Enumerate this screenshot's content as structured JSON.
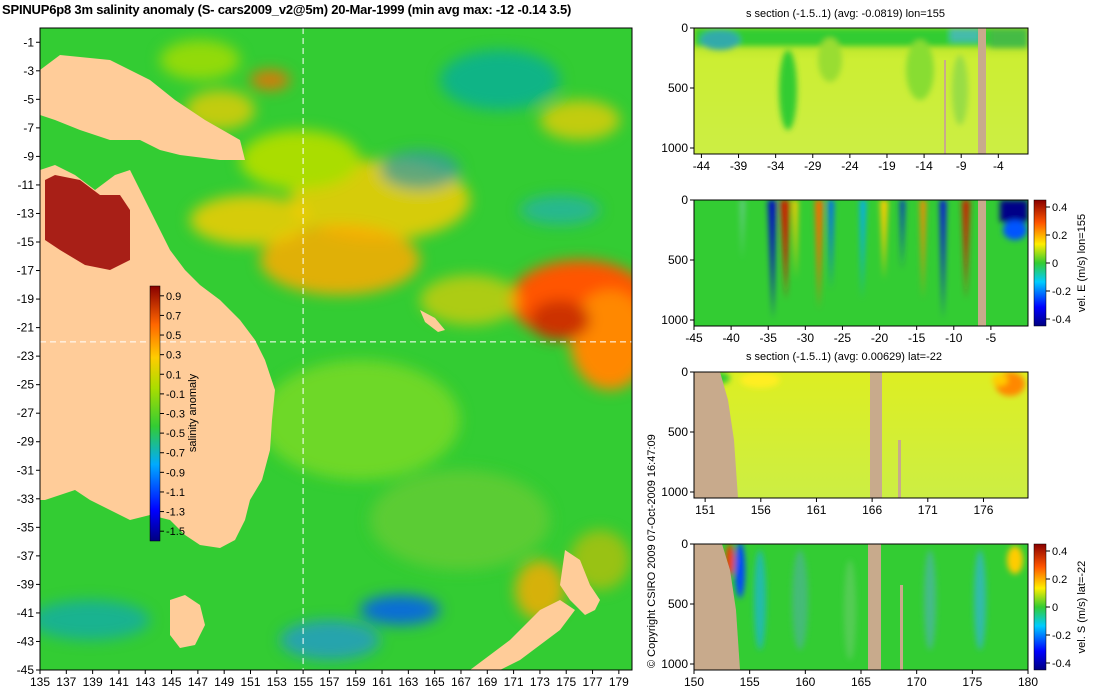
{
  "title": "SPINUP6p8 3m salinity anomaly (S- cars2009_v2@5m) 20-Mar-1999 (min avg max: -12 -0.14 3.5)",
  "copyright": "© Copyright CSIRO 2009   07-Oct-2009 16:47:09",
  "colors": {
    "land": "#ffcc99",
    "section_land": "#c8aa8c",
    "ocean_base": "#33cc33",
    "crosshair": "#ffffff"
  },
  "chart_data": [
    {
      "type": "heatmap",
      "name": "map",
      "title": "SPINUP6p8 3m salinity anomaly (S- cars2009_v2@5m) 20-Mar-1999 (min avg max: -12 -0.14 3.5)",
      "x_ticks": [
        "135",
        "137",
        "139",
        "141",
        "143",
        "145",
        "147",
        "149",
        "151",
        "153",
        "155",
        "157",
        "159",
        "161",
        "163",
        "165",
        "167",
        "169",
        "171",
        "173",
        "175",
        "177",
        "179"
      ],
      "y_ticks": [
        "-1",
        "-3",
        "-5",
        "-7",
        "-9",
        "-11",
        "-13",
        "-15",
        "-17",
        "-19",
        "-21",
        "-23",
        "-25",
        "-27",
        "-29",
        "-31",
        "-33",
        "-35",
        "-37",
        "-39",
        "-41",
        "-43",
        "-45"
      ],
      "xlim": [
        135,
        180
      ],
      "ylim": [
        -45,
        0
      ],
      "crosshair": {
        "lon": 155,
        "lat": -22
      },
      "colorbar": {
        "label": "salinity anomaly",
        "ticks": [
          "0.9",
          "0.7",
          "0.5",
          "0.3",
          "0.1",
          "-0.1",
          "-0.3",
          "-0.5",
          "-0.7",
          "-0.9",
          "-1.1",
          "-1.3",
          "-1.5"
        ],
        "range": [
          -1.6,
          1.0
        ]
      }
    },
    {
      "type": "heatmap",
      "name": "s-section-lon155",
      "title": "s section (-1.5..1) (avg: -0.0819) lon=155",
      "x_ticks": [
        "-44",
        "-39",
        "-34",
        "-29",
        "-24",
        "-19",
        "-14",
        "-9",
        "-4"
      ],
      "y_ticks": [
        "0",
        "500",
        "1000"
      ],
      "xlim": [
        -45,
        0
      ],
      "ylim": [
        1050,
        0
      ]
    },
    {
      "type": "heatmap",
      "name": "vel-e-lon155",
      "title": "",
      "x_ticks": [
        "-45",
        "-40",
        "-35",
        "-30",
        "-25",
        "-20",
        "-15",
        "-10",
        "-5"
      ],
      "y_ticks": [
        "0",
        "500",
        "1000"
      ],
      "xlim": [
        -45,
        0
      ],
      "ylim": [
        1050,
        0
      ],
      "colorbar": {
        "label": "vel. E (m/s) lon=155",
        "ticks": [
          "0.4",
          "0.2",
          "0",
          "-0.2",
          "-0.4"
        ],
        "range": [
          -0.45,
          0.45
        ]
      }
    },
    {
      "type": "heatmap",
      "name": "s-section-lat-22",
      "title": "s section (-1.5..1) (avg: 0.00629) lat=-22",
      "x_ticks": [
        "151",
        "156",
        "161",
        "166",
        "171",
        "176"
      ],
      "y_ticks": [
        "0",
        "500",
        "1000"
      ],
      "xlim": [
        150,
        180
      ],
      "ylim": [
        1050,
        0
      ]
    },
    {
      "type": "heatmap",
      "name": "vel-s-lat-22",
      "title": "",
      "x_ticks": [
        "150",
        "155",
        "160",
        "165",
        "170",
        "175",
        "180"
      ],
      "y_ticks": [
        "0",
        "500",
        "1000"
      ],
      "xlim": [
        150,
        180
      ],
      "ylim": [
        1050,
        0
      ],
      "colorbar": {
        "label": "vel. S (m/s) lat=-22",
        "ticks": [
          "0.4",
          "0.2",
          "0",
          "-0.2",
          "-0.4"
        ],
        "range": [
          -0.45,
          0.45
        ]
      }
    }
  ]
}
